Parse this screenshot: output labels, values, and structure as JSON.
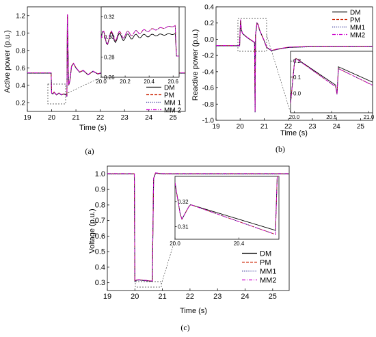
{
  "chart_data": [
    {
      "type": "line",
      "panel_label": "(a)",
      "xlabel": "Time (s)",
      "ylabel": "Active power (p.u.)",
      "xlim": [
        19,
        25.5
      ],
      "ylim": [
        0.1,
        1.3
      ],
      "xticks": [
        "19",
        "20",
        "21",
        "22",
        "23",
        "24",
        "25"
      ],
      "yticks": [
        "0.2",
        "0.4",
        "0.6",
        "0.8",
        "1.0",
        "1.2"
      ],
      "legend_position": "bottom-right",
      "series": [
        {
          "name": "DM",
          "color": "#000000",
          "dash": "solid"
        },
        {
          "name": "PM",
          "color": "#cc2200",
          "dash": "dashed"
        },
        {
          "name": "MM 1",
          "color": "#1a1a8c",
          "dash": "dotted"
        },
        {
          "name": "MM 2",
          "color": "#cc00cc",
          "dash": "dashdot"
        }
      ],
      "x": [
        19,
        19.98,
        20.0,
        20.05,
        20.1,
        20.2,
        20.3,
        20.4,
        20.5,
        20.6,
        20.63,
        20.65,
        20.7,
        20.75,
        20.82,
        20.9,
        21.0,
        21.15,
        21.3,
        21.5,
        21.7,
        21.9,
        22.1,
        22.3,
        22.6,
        23.0,
        23.5,
        24.0,
        24.5,
        25.0,
        25.5
      ],
      "values": [
        0.54,
        0.54,
        0.31,
        0.3,
        0.32,
        0.29,
        0.31,
        0.29,
        0.3,
        0.29,
        0.27,
        1.21,
        0.4,
        0.45,
        0.62,
        0.65,
        0.6,
        0.55,
        0.57,
        0.52,
        0.56,
        0.53,
        0.545,
        0.535,
        0.54,
        0.54,
        0.54,
        0.54,
        0.54,
        0.54,
        0.54
      ],
      "inset": {
        "xlim": [
          20.0,
          20.65
        ],
        "ylim": [
          0.26,
          0.33
        ],
        "xticks": [
          "20.0",
          "20.2",
          "20.4",
          "20.6"
        ],
        "yticks": [
          "0.26",
          "0.28",
          "0.30",
          "0.32"
        ]
      }
    },
    {
      "type": "line",
      "panel_label": "(b)",
      "xlabel": "Time (s)",
      "ylabel": "Reactive power (p.u.)",
      "xlim": [
        19,
        25.5
      ],
      "ylim": [
        -1.0,
        0.4
      ],
      "xticks": [
        "19",
        "20",
        "21",
        "22",
        "23",
        "24",
        "25"
      ],
      "yticks": [
        "-1.0",
        "-0.8",
        "-0.6",
        "-0.4",
        "-0.2",
        "0.0",
        "0.2",
        "0.4"
      ],
      "legend_position": "top-right",
      "series": [
        {
          "name": "DM",
          "color": "#000000",
          "dash": "solid"
        },
        {
          "name": "PM",
          "color": "#cc2200",
          "dash": "dashed"
        },
        {
          "name": "MM1",
          "color": "#1a1a8c",
          "dash": "dotted"
        },
        {
          "name": "MM2",
          "color": "#cc00cc",
          "dash": "dashdot"
        }
      ],
      "x": [
        19,
        19.98,
        20.0,
        20.02,
        20.05,
        20.1,
        20.3,
        20.5,
        20.6,
        20.62,
        20.64,
        20.66,
        20.7,
        20.75,
        20.8,
        20.9,
        21.0,
        21.1,
        21.3,
        21.6,
        22.0,
        23.0,
        24.0,
        25.0,
        25.5
      ],
      "values": [
        -0.08,
        -0.08,
        0.1,
        0.24,
        0.12,
        0.07,
        0.02,
        -0.02,
        -0.04,
        -0.9,
        0.05,
        0.1,
        0.2,
        0.18,
        0.12,
        0.05,
        -0.02,
        -0.1,
        -0.14,
        -0.12,
        -0.1,
        -0.09,
        -0.09,
        -0.09,
        -0.09
      ],
      "inset": {
        "xlim": [
          19.95,
          21.05
        ],
        "ylim": [
          -0.12,
          0.26
        ],
        "xticks": [
          "20.0",
          "20.5",
          "21.0"
        ],
        "yticks": [
          "0.0",
          "0.1",
          "0.2"
        ]
      }
    },
    {
      "type": "line",
      "panel_label": "(c)",
      "xlabel": "Time (s)",
      "ylabel": "Voltage (p.u.)",
      "xlim": [
        19,
        25.6
      ],
      "ylim": [
        0.25,
        1.05
      ],
      "xticks": [
        "19",
        "20",
        "21",
        "22",
        "23",
        "24",
        "25"
      ],
      "yticks": [
        "0.3",
        "0.4",
        "0.5",
        "0.6",
        "0.7",
        "0.8",
        "0.9",
        "1.0"
      ],
      "legend_position": "bottom-right",
      "series": [
        {
          "name": "DM",
          "color": "#000000",
          "dash": "solid"
        },
        {
          "name": "PM",
          "color": "#cc2200",
          "dash": "dashed"
        },
        {
          "name": "MM1",
          "color": "#1a1a8c",
          "dash": "dotted"
        },
        {
          "name": "MM2",
          "color": "#cc00cc",
          "dash": "dashdot"
        }
      ],
      "x": [
        19,
        19.98,
        20.0,
        20.05,
        20.15,
        20.3,
        20.5,
        20.6,
        20.63,
        20.68,
        20.75,
        21.0,
        22.0,
        23.0,
        24.0,
        25.0,
        25.6
      ],
      "values": [
        1.0,
        1.0,
        0.31,
        0.316,
        0.318,
        0.315,
        0.312,
        0.31,
        0.31,
        0.97,
        1.005,
        1.0,
        1.0,
        1.0,
        1.0,
        1.0,
        1.0
      ],
      "inset": {
        "xlim": [
          20.0,
          20.65
        ],
        "ylim": [
          0.305,
          0.33
        ],
        "xticks": [
          "20.0",
          "20.4"
        ],
        "yticks": [
          "0.31",
          "0.32"
        ]
      }
    }
  ]
}
